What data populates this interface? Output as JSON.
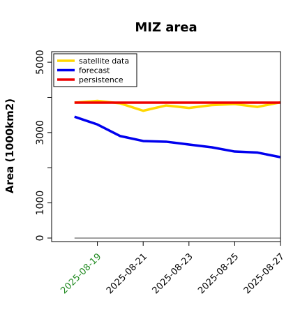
{
  "chart_data": {
    "type": "line",
    "title": "MIZ area",
    "ylabel": "Area (1000km2)",
    "xlabel": "",
    "x": [
      "2025-08-18",
      "2025-08-19",
      "2025-08-20",
      "2025-08-21",
      "2025-08-22",
      "2025-08-23",
      "2025-08-24",
      "2025-08-25",
      "2025-08-26",
      "2025-08-27"
    ],
    "xlim": [
      "2025-08-17",
      "2025-08-27"
    ],
    "ylim": [
      -100,
      5300
    ],
    "yticks": [
      0,
      1000,
      3000,
      5000
    ],
    "ytick_labels": [
      "0",
      "1000",
      "3000",
      "5000"
    ],
    "minor_yticks": [
      2000,
      4000
    ],
    "xticks": [
      "2025-08-19",
      "2025-08-21",
      "2025-08-23",
      "2025-08-25",
      "2025-08-27"
    ],
    "xtick_labels": [
      "2025-08-19",
      "2025-08-21",
      "2025-08-23",
      "2025-08-25",
      "2025-08-27"
    ],
    "highlighted_xtick": "2025-08-19",
    "highlight_color": "#228b22",
    "grid": false,
    "legend": {
      "placement": "top-left"
    },
    "series": [
      {
        "name": "satellite data",
        "color": "#ffd700",
        "values": [
          3850,
          3900,
          3830,
          3620,
          3770,
          3700,
          3780,
          3810,
          3730,
          3860
        ]
      },
      {
        "name": "forecast",
        "color": "#0000ee",
        "values": [
          3450,
          3230,
          2900,
          2760,
          2740,
          2660,
          2580,
          2460,
          2430,
          2300
        ]
      },
      {
        "name": "persistence",
        "color": "#ee0000",
        "values": [
          3850,
          3850,
          3850,
          3850,
          3850,
          3850,
          3850,
          3850,
          3850,
          3850
        ]
      }
    ],
    "reference_line": {
      "value": 0,
      "color": "#808080"
    }
  }
}
